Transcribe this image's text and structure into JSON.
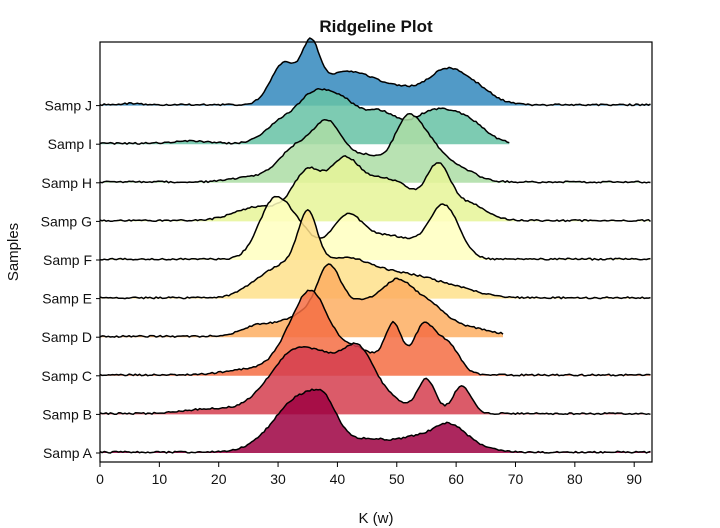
{
  "chart_data": {
    "type": "area",
    "title": "Ridgeline Plot",
    "xlabel": "K (w)",
    "ylabel": "Samples",
    "xlim": [
      0,
      93
    ],
    "xticks": [
      0,
      10,
      20,
      30,
      40,
      50,
      60,
      70,
      80,
      90
    ],
    "grid": false,
    "series": [
      {
        "name": "Samp A",
        "color": "#9e0142",
        "range": [
          0,
          93
        ],
        "peaks": [
          [
            34,
            4.5,
            1.0
          ],
          [
            38,
            2.0,
            0.35
          ],
          [
            46,
            3.0,
            0.2
          ],
          [
            53,
            3.0,
            0.25
          ],
          [
            58.5,
            2.5,
            0.4
          ],
          [
            62,
            3.0,
            0.15
          ]
        ]
      },
      {
        "name": "Samp B",
        "color": "#d53e4f",
        "range": [
          0,
          93
        ],
        "peaks": [
          [
            29,
            4.0,
            0.3
          ],
          [
            33,
            3.5,
            0.85
          ],
          [
            38.5,
            3.0,
            0.7
          ],
          [
            43.5,
            2.5,
            0.95
          ],
          [
            48,
            3.0,
            0.3
          ],
          [
            55,
            1.5,
            0.6
          ],
          [
            61,
            1.5,
            0.5
          ],
          [
            18,
            4.0,
            0.08
          ]
        ]
      },
      {
        "name": "Samp C",
        "color": "#f46d43",
        "range": [
          0,
          93
        ],
        "peaks": [
          [
            33,
            3.0,
            0.7
          ],
          [
            36,
            2.5,
            0.9
          ],
          [
            41,
            3.5,
            0.45
          ],
          [
            49.5,
            1.4,
            0.8
          ],
          [
            54.5,
            1.8,
            0.85
          ],
          [
            58.5,
            2.0,
            0.55
          ],
          [
            46,
            3.0,
            0.2
          ],
          [
            25,
            4.0,
            0.1
          ]
        ]
      },
      {
        "name": "Samp D",
        "color": "#fdae61",
        "range": [
          0,
          68
        ],
        "peaks": [
          [
            38.5,
            2.0,
            1.0
          ],
          [
            34,
            3.0,
            0.35
          ],
          [
            44,
            3.5,
            0.6
          ],
          [
            50,
            2.5,
            0.75
          ],
          [
            55,
            3.0,
            0.55
          ],
          [
            27,
            3.0,
            0.2
          ],
          [
            62,
            4.0,
            0.15
          ]
        ]
      },
      {
        "name": "Samp E",
        "color": "#fee08b",
        "range": [
          0,
          93
        ],
        "peaks": [
          [
            35,
            1.6,
            0.95
          ],
          [
            32,
            3.5,
            0.5
          ],
          [
            40,
            4.0,
            0.55
          ],
          [
            46,
            4.0,
            0.35
          ],
          [
            53,
            4.0,
            0.3
          ],
          [
            60,
            4.0,
            0.15
          ],
          [
            27,
            3.0,
            0.2
          ]
        ]
      },
      {
        "name": "Samp F",
        "color": "#ffffbf",
        "range": [
          0,
          93
        ],
        "peaks": [
          [
            29,
            2.5,
            0.85
          ],
          [
            33,
            3.0,
            0.55
          ],
          [
            41.5,
            2.5,
            0.7
          ],
          [
            47,
            3.5,
            0.35
          ],
          [
            58,
            2.5,
            0.95
          ],
          [
            52,
            3.0,
            0.2
          ]
        ]
      },
      {
        "name": "Samp G",
        "color": "#e6f598",
        "range": [
          0,
          93
        ],
        "peaks": [
          [
            35,
            2.5,
            0.85
          ],
          [
            41,
            2.5,
            0.95
          ],
          [
            46,
            3.0,
            0.55
          ],
          [
            51,
            3.0,
            0.5
          ],
          [
            57,
            2.0,
            0.9
          ],
          [
            27,
            4.0,
            0.25
          ],
          [
            62,
            3.0,
            0.3
          ]
        ]
      },
      {
        "name": "Samp H",
        "color": "#abdda4",
        "range": [
          0,
          93
        ],
        "peaks": [
          [
            33,
            3.0,
            0.6
          ],
          [
            38.5,
            2.5,
            0.95
          ],
          [
            45,
            3.0,
            0.45
          ],
          [
            51.5,
            2.2,
            0.9
          ],
          [
            55,
            2.5,
            0.6
          ],
          [
            60,
            3.0,
            0.25
          ],
          [
            25,
            3.0,
            0.08
          ]
        ]
      },
      {
        "name": "Samp I",
        "color": "#66c2a5",
        "range": [
          0,
          69
        ],
        "peaks": [
          [
            30,
            2.5,
            0.3
          ],
          [
            36,
            3.0,
            0.85
          ],
          [
            41,
            2.5,
            0.55
          ],
          [
            47,
            3.0,
            0.55
          ],
          [
            56,
            3.5,
            0.55
          ],
          [
            62,
            3.0,
            0.35
          ],
          [
            15,
            3.0,
            0.04
          ]
        ]
      },
      {
        "name": "Samp J",
        "color": "#3288bd",
        "range": [
          0,
          93
        ],
        "peaks": [
          [
            31,
            2.2,
            0.75
          ],
          [
            35.5,
            1.5,
            0.95
          ],
          [
            39,
            2.5,
            0.35
          ],
          [
            43.5,
            3.0,
            0.45
          ],
          [
            50,
            3.5,
            0.3
          ],
          [
            58,
            3.0,
            0.55
          ],
          [
            63,
            3.0,
            0.3
          ],
          [
            5,
            2.0,
            0.02
          ]
        ]
      }
    ]
  }
}
